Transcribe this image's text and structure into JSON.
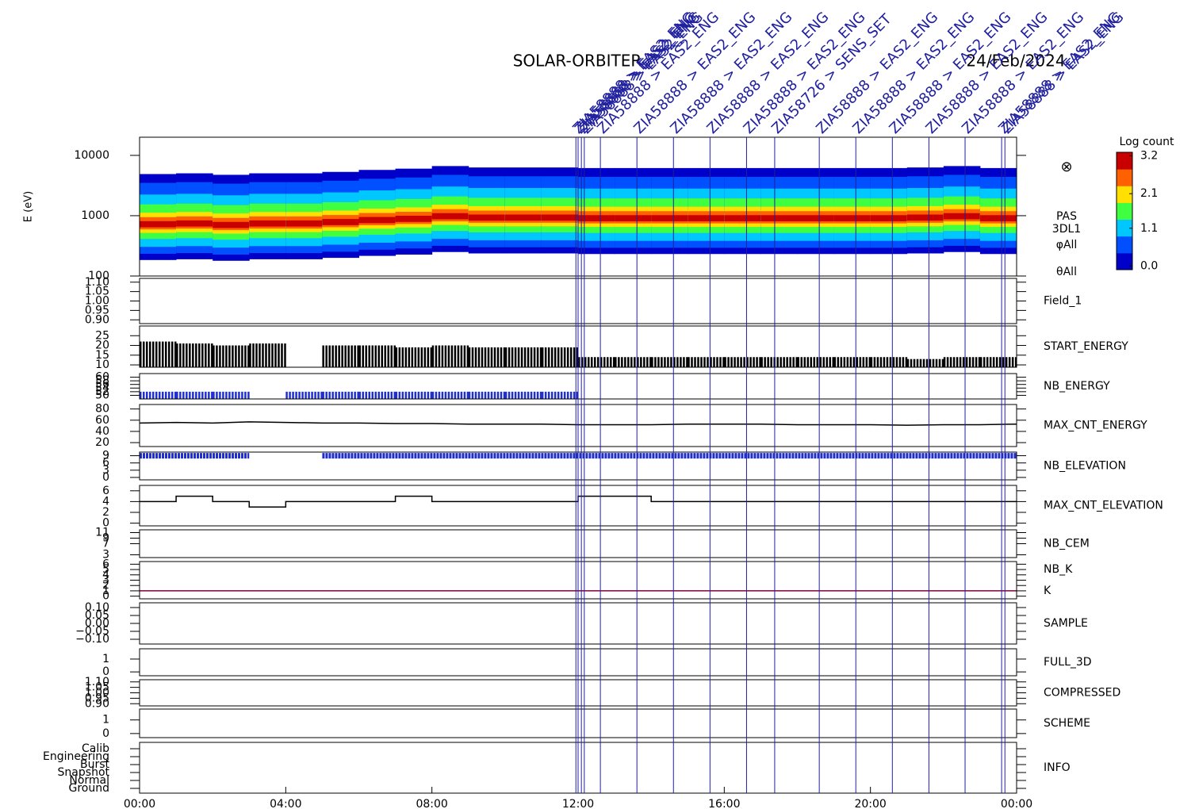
{
  "header": {
    "title": "SOLAR-ORBITER",
    "date": "24/Feb/2024"
  },
  "events": [
    {
      "x": 11.94,
      "label": "ZIA58888 > EAS2_ENG"
    },
    {
      "x": 12.0,
      "label": "ZIA58888 > EAS2_ENG"
    },
    {
      "x": 12.09,
      "label": "ZIA58888 > EAS2_ENG"
    },
    {
      "x": 12.17,
      "label": "ZIA58888 > EAS2_ENG"
    },
    {
      "x": 12.61,
      "label": "ZIA58888 > EAS2_ENG"
    },
    {
      "x": 13.61,
      "label": "ZIA58888 > EAS2_ENG"
    },
    {
      "x": 14.61,
      "label": "ZIA58888 > EAS2_ENG"
    },
    {
      "x": 15.61,
      "label": "ZIA58888 > EAS2_ENG"
    },
    {
      "x": 16.61,
      "label": "ZIA58888 > EAS2_ENG"
    },
    {
      "x": 17.38,
      "label": "ZIA58726 > SENS_SET"
    },
    {
      "x": 18.6,
      "label": "ZIA58888 > EAS2_ENG"
    },
    {
      "x": 19.6,
      "label": "ZIA58888 > EAS2_ENG"
    },
    {
      "x": 20.6,
      "label": "ZIA58888 > EAS2_ENG"
    },
    {
      "x": 21.6,
      "label": "ZIA58888 > EAS2_ENG"
    },
    {
      "x": 22.59,
      "label": "ZIA58888 > EAS2_ENG"
    },
    {
      "x": 23.59,
      "label": "ZIA58888 > EAS2_ENG"
    },
    {
      "x": 23.68,
      "label": "ZIA58888 > EAS2_ENG"
    }
  ],
  "chart_data": [
    {
      "type": "spectrogram",
      "ylabel": "E (eV)",
      "log_scale": true,
      "ylim": [
        100,
        20000
      ],
      "yticks": [
        100,
        1000,
        10000
      ],
      "labels": [
        "PAS",
        "3DL1",
        "φAll",
        "θAll"
      ],
      "symbol": "⊗",
      "x": [
        0,
        1,
        2,
        3,
        4,
        5,
        6,
        7,
        8,
        9,
        10,
        11,
        12,
        13,
        14,
        15,
        16,
        17,
        18,
        19,
        20,
        21,
        22,
        23
      ],
      "values": [
        700,
        720,
        680,
        720,
        720,
        760,
        820,
        860,
        950,
        900,
        900,
        900,
        880,
        880,
        880,
        880,
        880,
        880,
        880,
        880,
        880,
        900,
        950,
        880
      ],
      "colorbar_title": "Log count",
      "clim": [
        -0.1,
        3.3
      ],
      "cticks": [
        {
          "value": 0,
          "label": "0.0"
        },
        1.1,
        2.1,
        3.2
      ],
      "colorscale": [
        "#0000c8",
        "#0050ff",
        "#00c8ff",
        "#40ff40",
        "#ffe000",
        "#ff6000",
        "#c80000"
      ]
    },
    {
      "type": "empty",
      "labels": [
        "Field_1"
      ],
      "label_colors": [
        "#2020a0"
      ],
      "ylim": [
        0.88,
        1.12
      ],
      "yticks": [
        {
          "value": 0.9,
          "label": "0.90"
        },
        0.95,
        {
          "value": 1,
          "label": "1.00"
        },
        1.05,
        {
          "value": 1.1,
          "label": "1.10"
        }
      ]
    },
    {
      "type": "bar",
      "labels": [
        "START_ENERGY"
      ],
      "label_colors": [
        "#000000"
      ],
      "color": "#000000",
      "ylim": [
        8.8,
        30
      ],
      "yticks": [
        10,
        15,
        20,
        25
      ],
      "x": [
        0,
        1,
        2,
        3,
        4,
        5,
        6,
        7,
        8,
        9,
        10,
        11,
        12,
        13,
        14,
        15,
        16,
        17,
        18,
        19,
        20,
        21,
        22,
        23
      ],
      "values": [
        22,
        21,
        20,
        21,
        null,
        20,
        20,
        19,
        20,
        19,
        19,
        19,
        14,
        14,
        14,
        14,
        14,
        14,
        14,
        14,
        14,
        13,
        14,
        14
      ]
    },
    {
      "type": "bar",
      "labels": [
        "NB_ENERGY"
      ],
      "label_colors": [
        "#2020a0"
      ],
      "color": "#2030d0",
      "ylim": [
        48,
        62
      ],
      "yticks": [
        50,
        52,
        54,
        56,
        58,
        60
      ],
      "x": [
        0,
        1,
        2,
        3,
        4,
        5,
        6,
        7,
        8,
        9,
        10,
        11
      ],
      "values": [
        52,
        52,
        52,
        null,
        52,
        52,
        52,
        52,
        52,
        52,
        52,
        52
      ]
    },
    {
      "type": "line",
      "labels": [
        "MAX_CNT_ENERGY"
      ],
      "label_colors": [
        "#000000"
      ],
      "color": "#000000",
      "ylim": [
        13,
        88
      ],
      "yticks": [
        20,
        40,
        60,
        80
      ],
      "x": [
        0,
        1,
        2,
        3,
        4,
        5,
        6,
        7,
        8,
        9,
        10,
        11,
        12,
        13,
        14,
        15,
        16,
        17,
        18,
        19,
        20,
        21,
        22,
        23,
        24
      ],
      "values": [
        55,
        56,
        55,
        57,
        56,
        55,
        55,
        54,
        54,
        53,
        53,
        53,
        52,
        52,
        52,
        53,
        53,
        53,
        52,
        52,
        52,
        51,
        52,
        52,
        53
      ]
    },
    {
      "type": "thickline",
      "labels": [
        "NB_ELEVATION"
      ],
      "label_colors": [
        "#2020a0"
      ],
      "color": "#2030d0",
      "ylim": [
        -1,
        10.5
      ],
      "yticks": [
        0,
        3,
        6,
        9
      ],
      "x": [
        0,
        1,
        2,
        3,
        4,
        5,
        6,
        7,
        8,
        9,
        10,
        11,
        12,
        13,
        14,
        15,
        16,
        17,
        18,
        19,
        20,
        21,
        22,
        23,
        24
      ],
      "values": [
        9,
        9,
        9,
        9,
        null,
        9,
        9,
        9,
        9,
        9,
        9,
        9,
        9,
        9,
        9,
        9,
        9,
        9,
        9,
        9,
        9,
        9,
        9,
        9,
        9
      ]
    },
    {
      "type": "step",
      "labels": [
        "MAX_CNT_ELEVATION"
      ],
      "label_colors": [
        "#000000"
      ],
      "color": "#000000",
      "ylim": [
        -0.5,
        7
      ],
      "yticks": [
        0,
        2,
        4,
        6
      ],
      "x": [
        0,
        1,
        2,
        3,
        4,
        5,
        6,
        7,
        8,
        9,
        10,
        11,
        12,
        13,
        14,
        15,
        16,
        17,
        18,
        19,
        20,
        21,
        22,
        23,
        24
      ],
      "values": [
        4,
        5,
        4,
        3,
        4,
        4,
        4,
        5,
        4,
        4,
        4,
        4,
        5,
        5,
        4,
        4,
        4,
        4,
        4,
        4,
        4,
        4,
        4,
        4,
        4
      ]
    },
    {
      "type": "empty",
      "labels": [
        "NB_CEM"
      ],
      "label_colors": [
        "#2020a0"
      ],
      "ylim": [
        2,
        12
      ],
      "yticks": [
        3,
        7,
        9,
        11
      ]
    },
    {
      "type": "line",
      "labels": [
        "NB_K",
        "K"
      ],
      "label_colors": [
        "#c02020",
        "#2020a0"
      ],
      "color": "#800040",
      "ylim": [
        -0.5,
        6.5
      ],
      "yticks": [
        0,
        1,
        2,
        3,
        4,
        5,
        6
      ],
      "x": [
        0,
        24
      ],
      "values": [
        1,
        1
      ]
    },
    {
      "type": "empty",
      "labels": [
        "SAMPLE"
      ],
      "label_colors": [
        "#2020a0"
      ],
      "ylim": [
        -0.13,
        0.13
      ],
      "yticks": [
        {
          "value": -0.1,
          "label": "−0.10"
        },
        {
          "value": -0.05,
          "label": "−0.05"
        },
        {
          "value": 0,
          "label": "0.00"
        },
        0.05,
        {
          "value": 0.1,
          "label": "0.10"
        }
      ]
    },
    {
      "type": "empty",
      "labels": [
        "FULL_3D"
      ],
      "label_colors": [
        "#2020a0"
      ],
      "ylim": [
        -0.3,
        1.8
      ],
      "yticks": [
        0,
        1
      ]
    },
    {
      "type": "empty",
      "labels": [
        "COMPRESSED"
      ],
      "label_colors": [
        "#000000"
      ],
      "ylim": [
        0.88,
        1.12
      ],
      "yticks": [
        {
          "value": 0.9,
          "label": "0.90"
        },
        0.95,
        {
          "value": 1,
          "label": "1.00"
        },
        1.05,
        {
          "value": 1.1,
          "label": "1.10"
        }
      ]
    },
    {
      "type": "empty",
      "labels": [
        "SCHEME"
      ],
      "label_colors": [
        "#000000"
      ],
      "ylim": [
        -0.3,
        1.8
      ],
      "yticks": [
        0,
        1
      ]
    },
    {
      "type": "empty",
      "labels": [
        "INFO"
      ],
      "label_colors": [
        "#000000"
      ],
      "ylim": [
        -0.6,
        5.8
      ],
      "yticks": [
        {
          "value": 5,
          "label": "Calib"
        },
        {
          "value": 4,
          "label": "Engineering"
        },
        {
          "value": 3,
          "label": "Burst"
        },
        {
          "value": 2,
          "label": "Snapshot"
        },
        {
          "value": 1,
          "label": "Normal"
        },
        {
          "value": 0,
          "label": "Ground"
        }
      ],
      "xlim": [
        0,
        24
      ],
      "xticks": [
        {
          "value": 0,
          "label": "00:00"
        },
        {
          "value": 4,
          "label": "04:00"
        },
        {
          "value": 8,
          "label": "08:00"
        },
        {
          "value": 12,
          "label": "12:00"
        },
        {
          "value": 16,
          "label": "16:00"
        },
        {
          "value": 20,
          "label": "20:00"
        },
        {
          "value": 24,
          "label": "00:00"
        }
      ]
    }
  ]
}
